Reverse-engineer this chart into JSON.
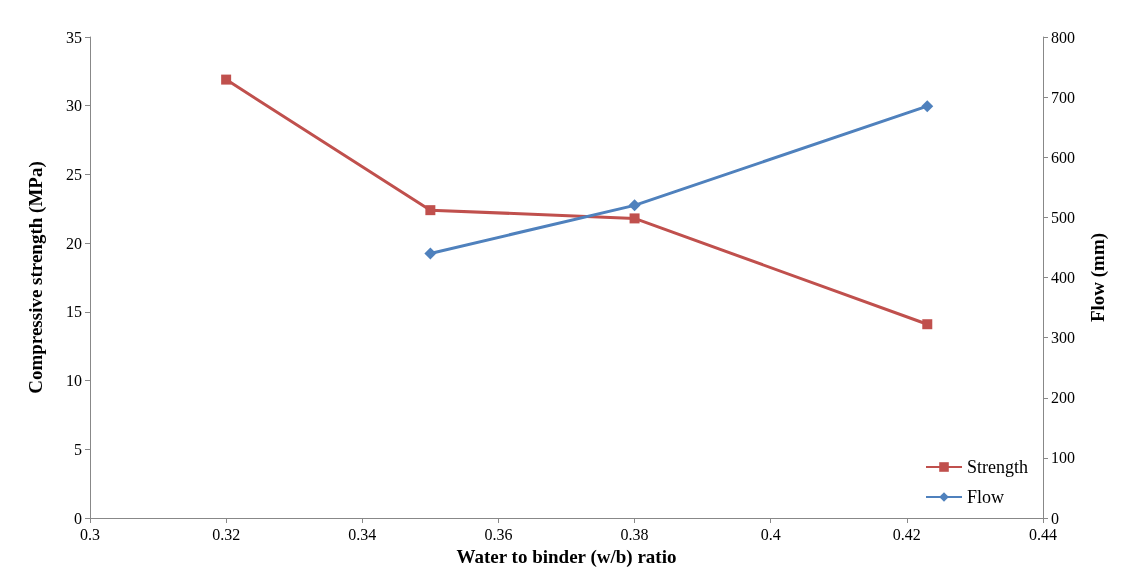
{
  "chart_data": {
    "type": "line",
    "xlabel": "Water to binder (w/b) ratio",
    "ylabel": "Compressive strength (MPa)",
    "y2label": "Flow (mm)",
    "xlim": [
      0.3,
      0.44
    ],
    "xticks": [
      0.3,
      0.32,
      0.34,
      0.36,
      0.38,
      0.4,
      0.42,
      0.44
    ],
    "ylim": [
      0,
      35
    ],
    "yticks": [
      0,
      5,
      10,
      15,
      20,
      25,
      30,
      35
    ],
    "y2lim": [
      0,
      800
    ],
    "y2ticks": [
      0,
      100,
      200,
      300,
      400,
      500,
      600,
      700,
      800
    ],
    "grid": false,
    "legend": "bottom right",
    "line_style": "solid",
    "series": [
      {
        "name": "Strength",
        "color": "#c0504d",
        "marker": "square",
        "x": [
          0.32,
          0.35,
          0.38,
          0.423
        ],
        "values": [
          31.9,
          22.4,
          21.8,
          14.1
        ]
      },
      {
        "name": "Flow",
        "color": "#4f81bd",
        "marker": "diamond",
        "axis": "y2",
        "x": [
          0.35,
          0.38,
          0.423
        ],
        "values": [
          440,
          520,
          685
        ]
      }
    ]
  }
}
